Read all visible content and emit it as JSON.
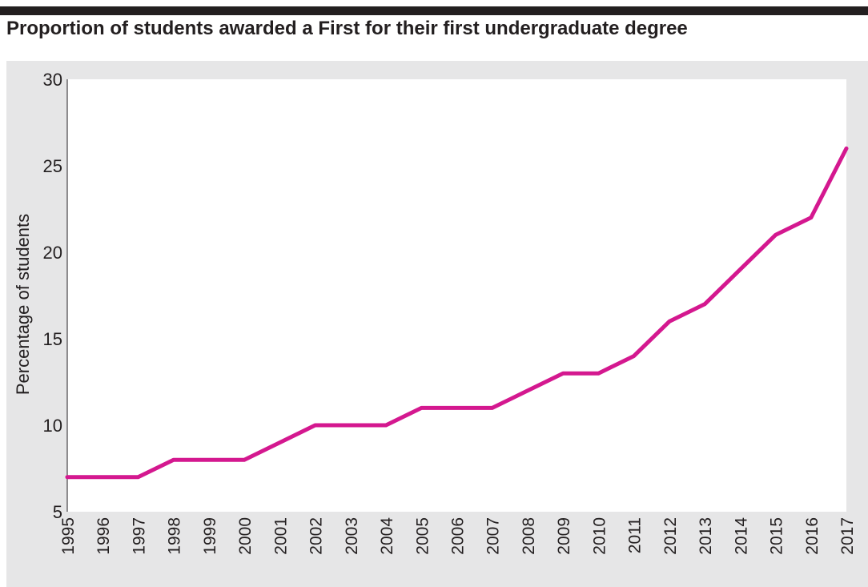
{
  "title": "Proportion of students awarded a First for their first undergraduate degree",
  "colors": {
    "line": "#d4188f",
    "panel": "#e6e6e7",
    "plot": "#ffffff",
    "title_bar": "#231f20",
    "text": "#231f20"
  },
  "chart_data": {
    "type": "line",
    "title": "Proportion of students awarded a First for their first undergraduate degree",
    "xlabel": "",
    "ylabel": "Percentage of students",
    "x": [
      "1995",
      "1996",
      "1997",
      "1998",
      "1999",
      "2000",
      "2001",
      "2002",
      "2003",
      "2004",
      "2005",
      "2006",
      "2007",
      "2008",
      "2009",
      "2010",
      "2011",
      "2012",
      "2013",
      "2014",
      "2015",
      "2016",
      "2017"
    ],
    "values": [
      7,
      7,
      7,
      8,
      8,
      8,
      9,
      10,
      10,
      10,
      11,
      11,
      11,
      12,
      13,
      13,
      14,
      16,
      17,
      19,
      21,
      22,
      26
    ],
    "ylim": [
      5,
      30
    ],
    "yticks": [
      5,
      10,
      15,
      20,
      25,
      30
    ],
    "grid": false,
    "legend": "none"
  }
}
